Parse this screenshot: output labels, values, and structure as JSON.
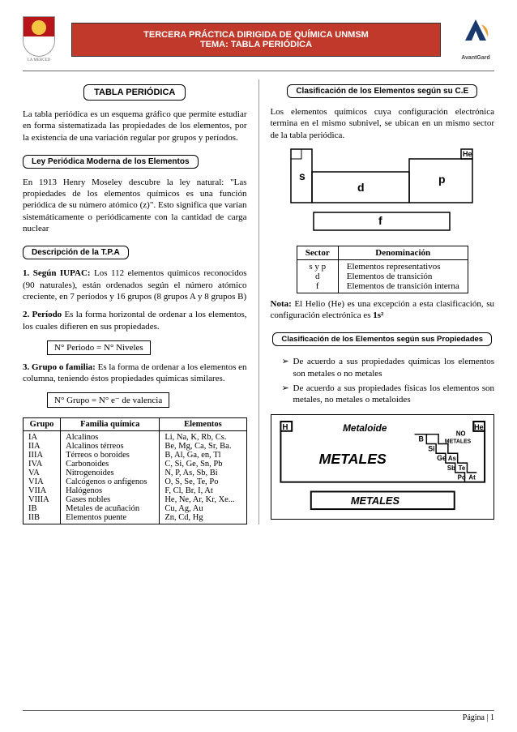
{
  "header": {
    "title_line1": "TERCERA PRÁCTICA DIRIGIDA DE QUÍMICA UNMSM",
    "title_line2": "TEMA: TABLA PERIÓDICA",
    "shield_label": "LA MERCED",
    "right_logo_label": "AvantGard"
  },
  "left": {
    "h1": "TABLA PERIÓDICA",
    "intro": "La tabla periódica es un esquema gráfico que permite estudiar en forma sistematizada las propiedades de los elementos, por la existencia de una variación regular por grupos y períodos.",
    "h2": "Ley Periódica Moderna de los Elementos",
    "p2": "En 1913 Henry Moseley descubre la ley natural: \"Las propiedades de los elementos químicos es una función periódica de su número atómico (z)\". Esto significa que varían sistemáticamente o periódicamente con la cantidad de carga nuclear",
    "h3": "Descripción de la T.P.A",
    "item1": "1. Según IUPAC: Los 112 elementos químicos reconocidos (90 naturales), están ordenados según el número atómico creciente, en 7 períodos y 16 grupos (8 grupos A y 8 grupos B)",
    "item2": "2. Período: Es la forma horizontal de ordenar a los elementos, los cuales difieren en sus propiedades.",
    "formula1": "N° Periodo = N° Niveles",
    "item3": "3. Grupo o familia: Es la forma de ordenar a los elementos en columna, teniendo éstos propiedades químicas similares.",
    "formula2": "N° Grupo = N° e⁻ de valencia",
    "table": {
      "headers": [
        "Grupo",
        "Familia química",
        "Elementos"
      ],
      "rows": [
        [
          "IA",
          "Alcalinos",
          "Li, Na, K, Rb, Cs."
        ],
        [
          "IIA",
          "Alcalinos térreos",
          "Be, Mg, Ca, Sr, Ba."
        ],
        [
          "IIIA",
          "Térreos o boroides",
          "B, Al, Ga, en, Tl"
        ],
        [
          "IVA",
          "Carbonoides",
          "C, Si, Ge, Sn, Pb"
        ],
        [
          "VA",
          "Nitrogenoides",
          "N, P, As, Sb, Bi"
        ],
        [
          "VIA",
          "Calcógenos o anfígenos",
          "O, S, Se, Te, Po"
        ],
        [
          "VIIA",
          "Halógenos",
          "F, Cl, Br, I, At"
        ],
        [
          "VIIIA",
          "Gases nobles",
          "He, Ne, Ar, Kr, Xe..."
        ],
        [
          "IB",
          "Metales de acuñación",
          "Cu, Ag, Au"
        ],
        [
          "IIB",
          "Elementos puente",
          "Zn, Cd, Hg"
        ]
      ]
    }
  },
  "right": {
    "h1": "Clasificación de los Elementos según su C.E",
    "intro": "Los elementos químicos cuya configuración electrónica termina en el mismo subnivel, se ubican en un mismo sector de la tabla periódica.",
    "diagram": {
      "s": "s",
      "p": "p",
      "d": "d",
      "f": "f",
      "he": "He"
    },
    "sector_table": {
      "headers": [
        "Sector",
        "Denominación"
      ],
      "rows": [
        [
          "s y p",
          "Elementos representativos"
        ],
        [
          "d",
          "Elementos de transición"
        ],
        [
          "f",
          "Elementos de transición interna"
        ]
      ]
    },
    "note": "Nota: El Helio (He) es una excepción a esta clasificación, su configuración electrónica es 1s²",
    "h2": "Clasificación de los Elementos según sus Propiedades",
    "bullet1": "De acuerdo a sus propiedades químicas los elementos son metales o no metales",
    "bullet2": "De acuerdo a sus propiedades físicas los elementos son metales, no metales o metaloides",
    "mt": {
      "H": "H",
      "He": "He",
      "Metaloide": "Metaloide",
      "NO": "NO",
      "METALES_small": "METALES",
      "B": "B",
      "Si": "Si",
      "Ge": "Ge",
      "As": "As",
      "Sb": "Sb",
      "Te": "Te",
      "Po": "Po",
      "At": "At",
      "METALES": "METALES",
      "METALES_bottom": "METALES"
    }
  },
  "footer": "Página | 1"
}
